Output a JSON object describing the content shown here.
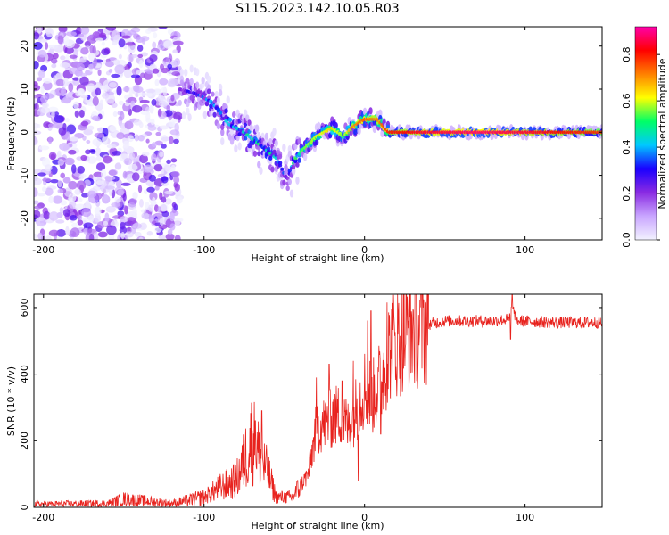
{
  "figure_title": "S115.2023.142.10.05.R03",
  "chart_data": [
    {
      "type": "heatmap",
      "title": "S115.2023.142.10.05.R03",
      "xlabel": "Height of straight line (km)",
      "ylabel": "Frequency (Hz)",
      "xlim": [
        -206,
        148
      ],
      "ylim": [
        -25,
        24.5
      ],
      "xticks": [
        -200,
        -100,
        0,
        100
      ],
      "yticks": [
        -20,
        -10,
        0,
        10,
        20
      ],
      "colorbar": {
        "label": "Normalized spectral amplitude",
        "range": [
          0.0,
          0.92
        ],
        "ticks": [
          0.0,
          0.2,
          0.4,
          0.6,
          0.8
        ],
        "colormap": [
          "#f2f2ff",
          "#c9a6ff",
          "#8a2be2",
          "#1a00ff",
          "#00c8ff",
          "#00ff66",
          "#ffff00",
          "#ff8000",
          "#ff0000",
          "#ff00aa"
        ]
      },
      "ridge": {
        "x": [
          -115,
          -105,
          -95,
          -85,
          -75,
          -65,
          -55,
          -48,
          -43,
          -38,
          -30,
          -20,
          -13,
          -8,
          0,
          8,
          15,
          40,
          70,
          100,
          148
        ],
        "frequency": [
          10,
          9,
          7,
          2,
          0,
          -3,
          -6,
          -11,
          -6,
          -4,
          -1,
          1,
          -1,
          1,
          3,
          3,
          0,
          0,
          0,
          0,
          0
        ],
        "amplitude": [
          0.2,
          0.3,
          0.35,
          0.4,
          0.4,
          0.45,
          0.4,
          0.3,
          0.5,
          0.55,
          0.6,
          0.65,
          0.55,
          0.7,
          0.75,
          0.7,
          0.8,
          0.85,
          0.88,
          0.85,
          0.78
        ]
      },
      "noise_region_x": [
        -206,
        -115
      ]
    },
    {
      "type": "line",
      "xlabel": "Height of straight line (km)",
      "ylabel": "SNR (10 * v/v)",
      "xlim": [
        -206,
        148
      ],
      "ylim": [
        0,
        640
      ],
      "xticks": [
        -200,
        -100,
        0,
        100
      ],
      "yticks": [
        0,
        200,
        400,
        600
      ],
      "series": [
        {
          "name": "SNR",
          "color": "#e8231e",
          "envelope": {
            "x": [
              -206,
              -160,
              -150,
              -120,
              -100,
              -90,
              -80,
              -75,
              -70,
              -65,
              -60,
              -55,
              -45,
              -35,
              -30,
              -25,
              -20,
              -15,
              -10,
              -5,
              0,
              5,
              10,
              15,
              20,
              25,
              30,
              40,
              50,
              70,
              80,
              90,
              92,
              95,
              120,
              148
            ],
            "y": [
              10,
              12,
              25,
              12,
              30,
              60,
              80,
              140,
              210,
              150,
              100,
              30,
              30,
              100,
              240,
              250,
              270,
              280,
              240,
              300,
              360,
              330,
              380,
              470,
              500,
              520,
              540,
              550,
              560,
              560,
              560,
              565,
              600,
              560,
              555,
              555
            ]
          },
          "spikes": [
            {
              "x": -64,
              "y": 290
            },
            {
              "x": -68,
              "y": 260
            },
            {
              "x": -30,
              "y": 390
            },
            {
              "x": -22,
              "y": 430
            },
            {
              "x": -14,
              "y": 380
            },
            {
              "x": -7,
              "y": 440
            },
            {
              "x": -4,
              "y": 80
            },
            {
              "x": 2,
              "y": 560
            },
            {
              "x": 4,
              "y": 590
            },
            {
              "x": 14,
              "y": 615
            },
            {
              "x": 10,
              "y": 220
            },
            {
              "x": 92,
              "y": 640
            },
            {
              "x": 91,
              "y": 505
            }
          ]
        }
      ]
    }
  ]
}
